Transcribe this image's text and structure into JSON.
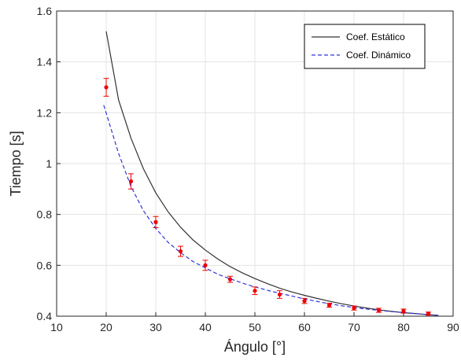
{
  "chart_data": {
    "type": "line",
    "xlabel": "Ángulo  [°]",
    "ylabel": "Tiempo  [s]",
    "xlim": [
      10,
      90
    ],
    "ylim": [
      0.4,
      1.6
    ],
    "xticks": [
      10,
      20,
      30,
      40,
      50,
      60,
      70,
      80,
      90
    ],
    "yticks": [
      0.4,
      0.6,
      0.8,
      1.0,
      1.2,
      1.4,
      1.6
    ],
    "xtick_labels": [
      "10",
      "20",
      "30",
      "40",
      "50",
      "60",
      "70",
      "80",
      "90"
    ],
    "ytick_labels": [
      "0.4",
      "0.6",
      "0.8",
      "1",
      "1.2",
      "1.4",
      "1.6"
    ],
    "grid": true,
    "legend_position": "top-right",
    "series": [
      {
        "name": "Coef. Estático",
        "style": "solid",
        "color": "#333333",
        "x": [
          20,
          22.5,
          25,
          27.5,
          30,
          32.5,
          35,
          37.5,
          40,
          42.5,
          45,
          47.5,
          50,
          52.5,
          55,
          57.5,
          60,
          62.5,
          65,
          67.5,
          70,
          72.5,
          75,
          77.5,
          80,
          82.5,
          85,
          87
        ],
        "y": [
          1.52,
          1.25,
          1.1,
          0.98,
          0.885,
          0.81,
          0.75,
          0.7,
          0.66,
          0.625,
          0.595,
          0.57,
          0.548,
          0.528,
          0.51,
          0.495,
          0.482,
          0.47,
          0.459,
          0.449,
          0.44,
          0.432,
          0.425,
          0.419,
          0.414,
          0.41,
          0.406,
          0.403
        ]
      },
      {
        "name": "Coef. Dinámico",
        "style": "dashed",
        "color": "#3333dd",
        "x": [
          19.5,
          22.5,
          25,
          27.5,
          30,
          32.5,
          35,
          37.5,
          40,
          42.5,
          45,
          47.5,
          50,
          52.5,
          55,
          57.5,
          60,
          62.5,
          65,
          67.5,
          70,
          72.5,
          75,
          77.5,
          80,
          82.5,
          85,
          87
        ],
        "y": [
          1.23,
          1.04,
          0.91,
          0.815,
          0.745,
          0.69,
          0.65,
          0.615,
          0.59,
          0.565,
          0.547,
          0.53,
          0.515,
          0.502,
          0.49,
          0.479,
          0.468,
          0.458,
          0.449,
          0.441,
          0.434,
          0.428,
          0.423,
          0.418,
          0.414,
          0.41,
          0.406,
          0.403
        ]
      },
      {
        "name": "",
        "type": "errorbar",
        "color": "#ee0000",
        "x": [
          20,
          25,
          30,
          35,
          40,
          45,
          50,
          55,
          60,
          65,
          70,
          75,
          80,
          85
        ],
        "y": [
          1.3,
          0.93,
          0.77,
          0.655,
          0.6,
          0.545,
          0.5,
          0.485,
          0.46,
          0.443,
          0.432,
          0.423,
          0.42,
          0.41
        ],
        "err": [
          0.035,
          0.03,
          0.022,
          0.02,
          0.02,
          0.012,
          0.015,
          0.015,
          0.01,
          0.008,
          0.008,
          0.008,
          0.008,
          0.006
        ]
      }
    ]
  }
}
